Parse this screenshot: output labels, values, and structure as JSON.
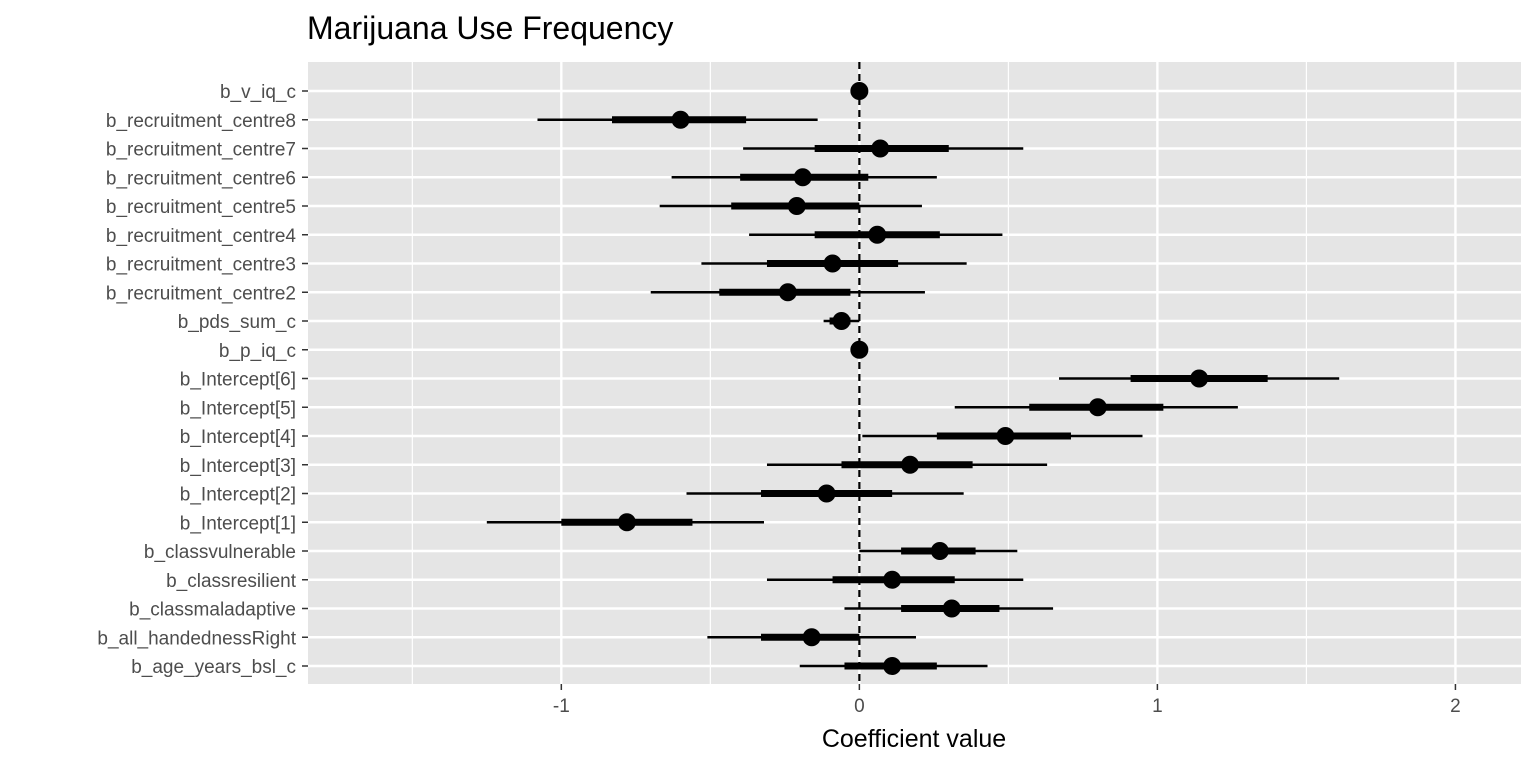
{
  "chart_data": {
    "type": "coefficient-interval",
    "title": "Marijuana Use Frequency",
    "xlabel": "Coefficient value",
    "ylabel": "",
    "xlim": [
      -1.85,
      2.22
    ],
    "x_ticks": [
      -1,
      0,
      1,
      2
    ],
    "x_tick_labels": [
      "-1",
      "0",
      "1",
      "2"
    ],
    "reference_line": 0,
    "grid": true,
    "background": "#e5e5e5",
    "grid_color": "#ffffff",
    "point_color": "#000000",
    "parameters": [
      {
        "name": "b_v_iq_c",
        "estimate": 0.0,
        "inner": [
          0.0,
          0.0
        ],
        "outer": [
          0.0,
          0.0
        ]
      },
      {
        "name": "b_recruitment_centre8",
        "estimate": -0.6,
        "inner": [
          -0.83,
          -0.38
        ],
        "outer": [
          -1.08,
          -0.14
        ]
      },
      {
        "name": "b_recruitment_centre7",
        "estimate": 0.07,
        "inner": [
          -0.15,
          0.3
        ],
        "outer": [
          -0.39,
          0.55
        ]
      },
      {
        "name": "b_recruitment_centre6",
        "estimate": -0.19,
        "inner": [
          -0.4,
          0.03
        ],
        "outer": [
          -0.63,
          0.26
        ]
      },
      {
        "name": "b_recruitment_centre5",
        "estimate": -0.21,
        "inner": [
          -0.43,
          0.0
        ],
        "outer": [
          -0.67,
          0.21
        ]
      },
      {
        "name": "b_recruitment_centre4",
        "estimate": 0.06,
        "inner": [
          -0.15,
          0.27
        ],
        "outer": [
          -0.37,
          0.48
        ]
      },
      {
        "name": "b_recruitment_centre3",
        "estimate": -0.09,
        "inner": [
          -0.31,
          0.13
        ],
        "outer": [
          -0.53,
          0.36
        ]
      },
      {
        "name": "b_recruitment_centre2",
        "estimate": -0.24,
        "inner": [
          -0.47,
          -0.03
        ],
        "outer": [
          -0.7,
          0.22
        ]
      },
      {
        "name": "b_pds_sum_c",
        "estimate": -0.06,
        "inner": [
          -0.1,
          -0.03
        ],
        "outer": [
          -0.12,
          0.0
        ]
      },
      {
        "name": "b_p_iq_c",
        "estimate": 0.0,
        "inner": [
          0.0,
          0.0
        ],
        "outer": [
          0.0,
          0.0
        ]
      },
      {
        "name": "b_Intercept[6]",
        "estimate": 1.14,
        "inner": [
          0.91,
          1.37
        ],
        "outer": [
          0.67,
          1.61
        ]
      },
      {
        "name": "b_Intercept[5]",
        "estimate": 0.8,
        "inner": [
          0.57,
          1.02
        ],
        "outer": [
          0.32,
          1.27
        ]
      },
      {
        "name": "b_Intercept[4]",
        "estimate": 0.49,
        "inner": [
          0.26,
          0.71
        ],
        "outer": [
          0.01,
          0.95
        ]
      },
      {
        "name": "b_Intercept[3]",
        "estimate": 0.17,
        "inner": [
          -0.06,
          0.38
        ],
        "outer": [
          -0.31,
          0.63
        ]
      },
      {
        "name": "b_Intercept[2]",
        "estimate": -0.11,
        "inner": [
          -0.33,
          0.11
        ],
        "outer": [
          -0.58,
          0.35
        ]
      },
      {
        "name": "b_Intercept[1]",
        "estimate": -0.78,
        "inner": [
          -1.0,
          -0.56
        ],
        "outer": [
          -1.25,
          -0.32
        ]
      },
      {
        "name": "b_classvulnerable",
        "estimate": 0.27,
        "inner": [
          0.14,
          0.39
        ],
        "outer": [
          0.0,
          0.53
        ]
      },
      {
        "name": "b_classresilient",
        "estimate": 0.11,
        "inner": [
          -0.09,
          0.32
        ],
        "outer": [
          -0.31,
          0.55
        ]
      },
      {
        "name": "b_classmaladaptive",
        "estimate": 0.31,
        "inner": [
          0.14,
          0.47
        ],
        "outer": [
          -0.05,
          0.65
        ]
      },
      {
        "name": "b_all_handednessRight",
        "estimate": -0.16,
        "inner": [
          -0.33,
          0.0
        ],
        "outer": [
          -0.51,
          0.19
        ]
      },
      {
        "name": "b_age_years_bsl_c",
        "estimate": 0.11,
        "inner": [
          -0.05,
          0.26
        ],
        "outer": [
          -0.2,
          0.43
        ]
      }
    ]
  }
}
